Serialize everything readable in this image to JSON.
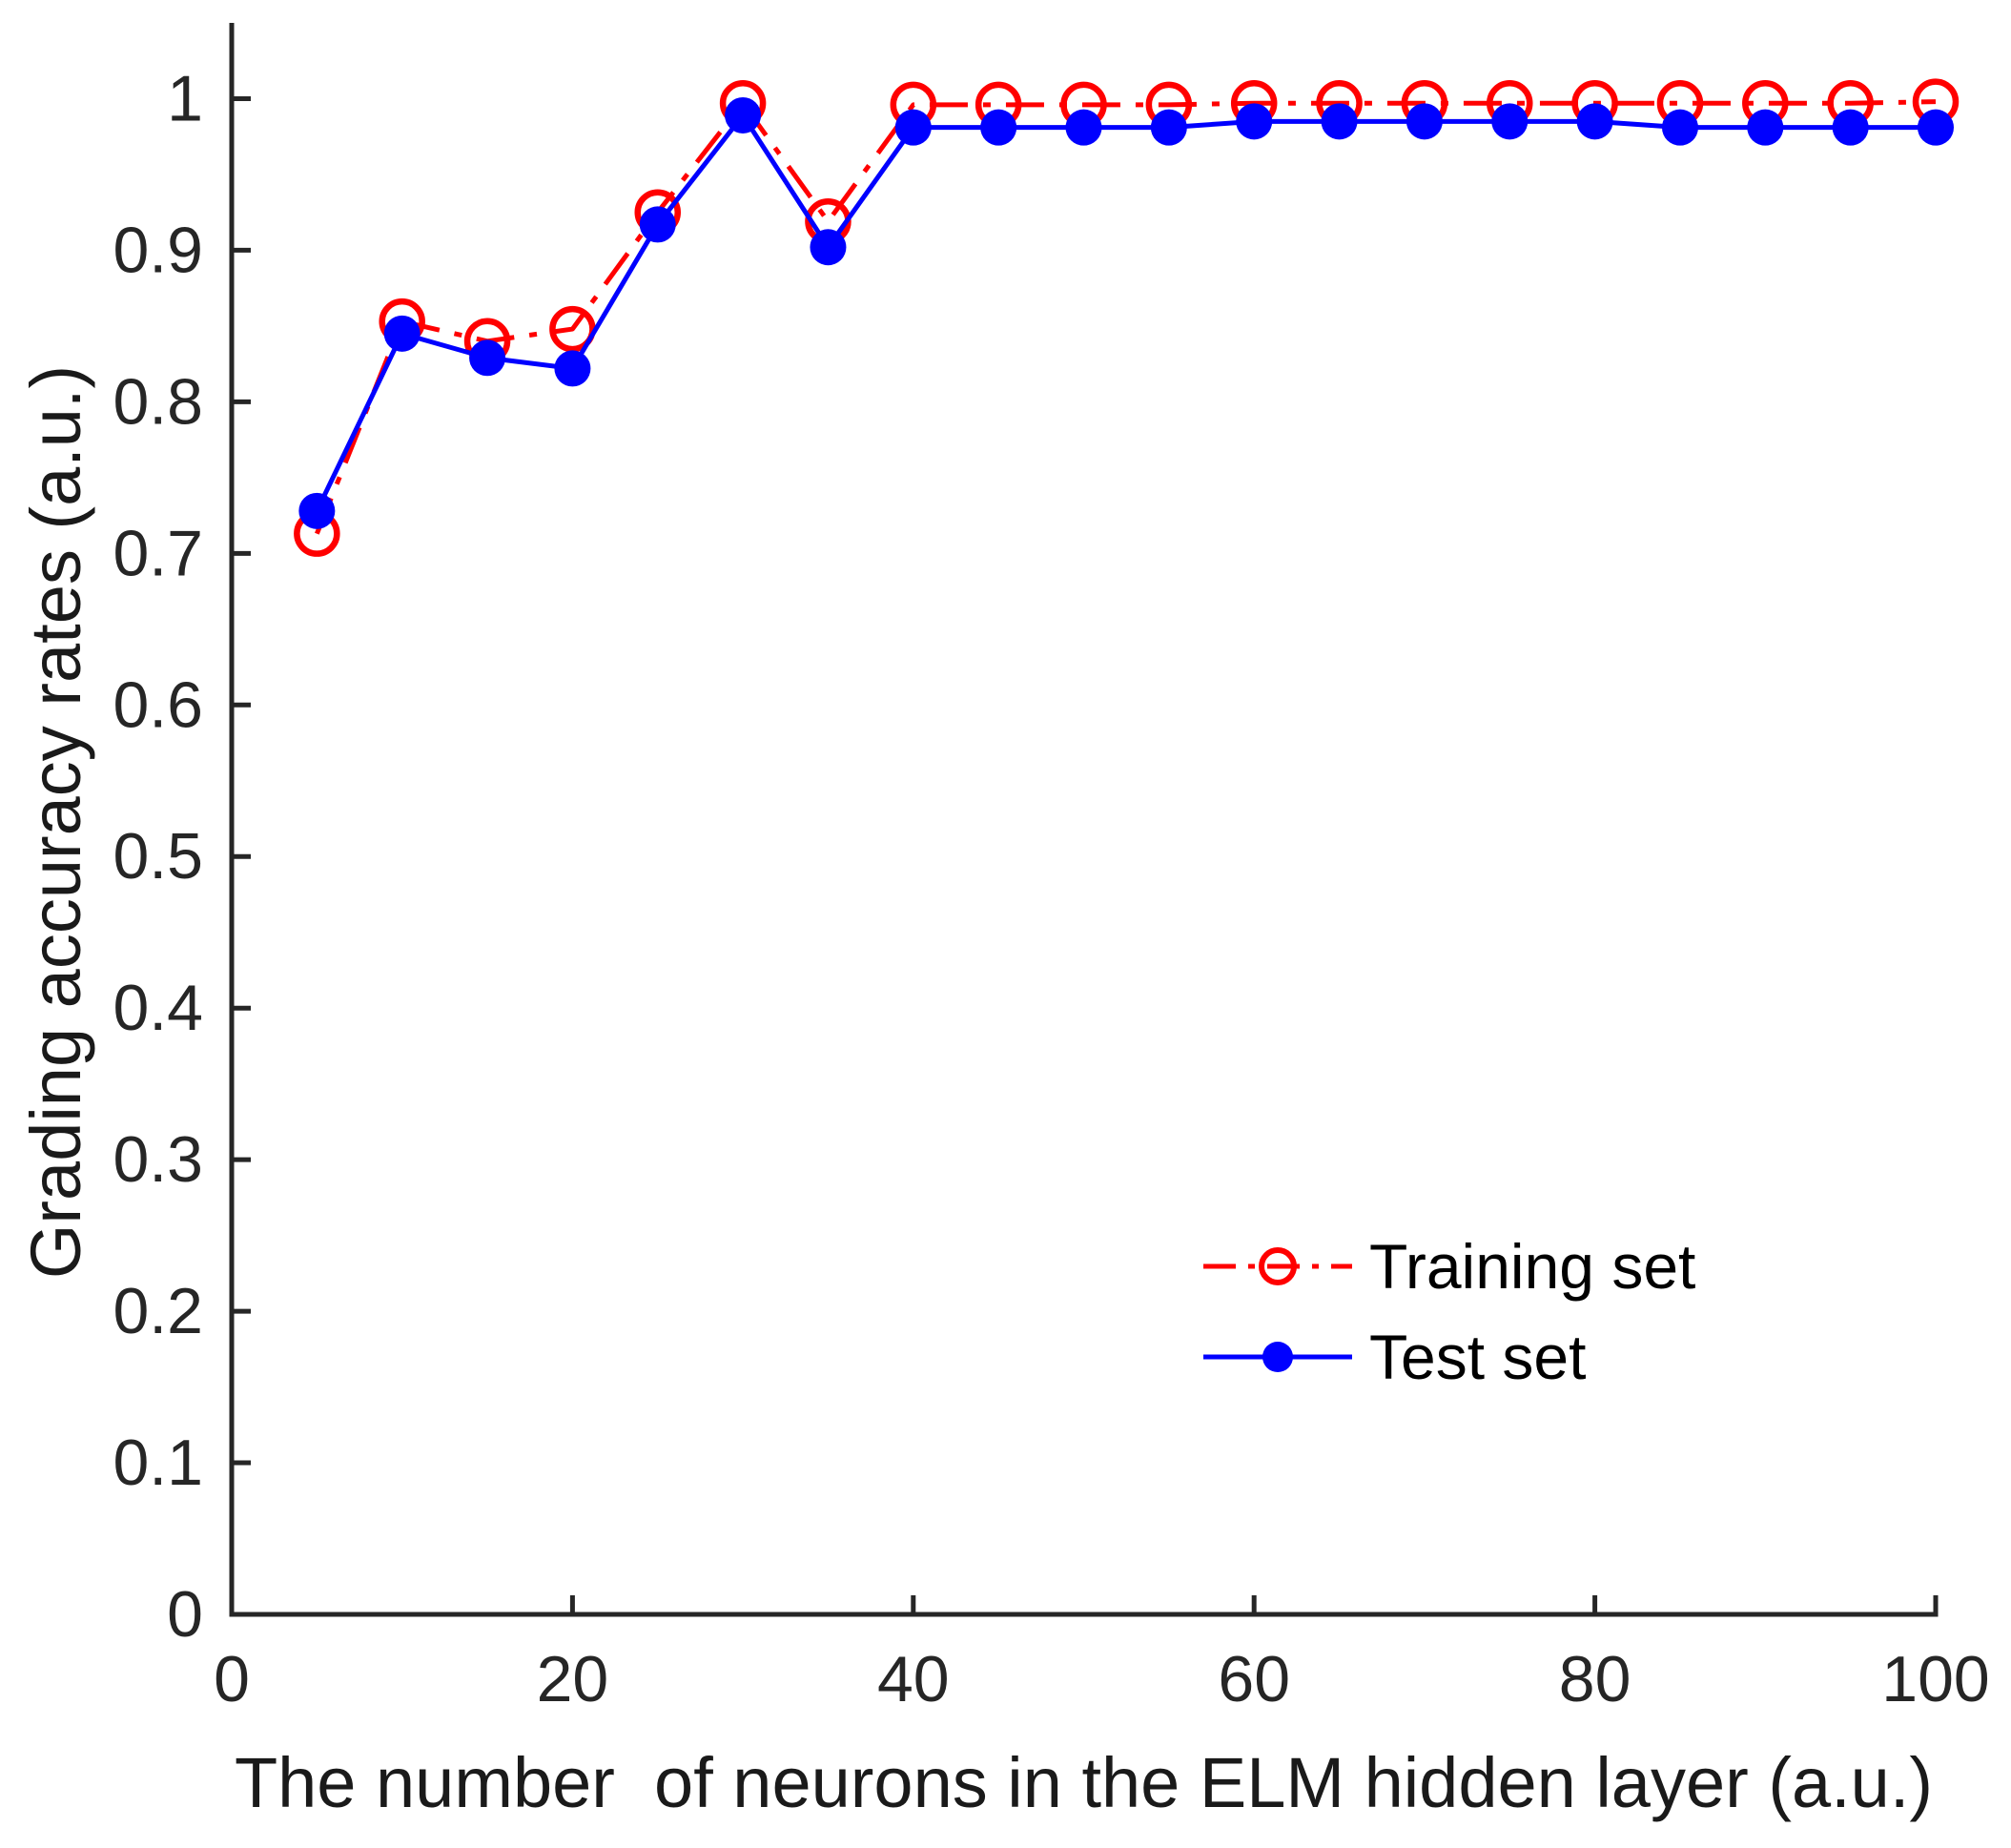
{
  "figure": {
    "background": "#ffffff",
    "axis_color": "#262626",
    "tick_label_color": "#262626",
    "label_color": "#1a1a1a"
  },
  "chart_data": {
    "type": "line",
    "title": "",
    "xlabel": "The number  of neurons in the ELM hidden layer (a.u.)",
    "ylabel": "Grading accuracy rates (a.u.)",
    "xlim": [
      0,
      100
    ],
    "ylim": [
      0,
      1.05
    ],
    "xticks": [
      0,
      20,
      40,
      60,
      80,
      100
    ],
    "xtick_labels": [
      "0",
      "20",
      "40",
      "60",
      "80",
      "100"
    ],
    "yticks": [
      0,
      0.1,
      0.2,
      0.3,
      0.4,
      0.5,
      0.6,
      0.7,
      0.8,
      0.9,
      1
    ],
    "ytick_labels": [
      "0",
      "0.1",
      "0.2",
      "0.3",
      "0.4",
      "0.5",
      "0.6",
      "0.7",
      "0.8",
      "0.9",
      "1"
    ],
    "grid": false,
    "legend_position": "inside-lower-right",
    "legend_frame": false,
    "x": [
      5,
      10,
      15,
      20,
      25,
      30,
      35,
      40,
      45,
      50,
      55,
      60,
      65,
      70,
      75,
      80,
      85,
      90,
      95,
      100
    ],
    "series": [
      {
        "name": "Training set",
        "color": "#ff0000",
        "line_style": "dash-dot",
        "marker": "open-circle",
        "values": [
          0.713,
          0.853,
          0.84,
          0.848,
          0.925,
          0.997,
          0.919,
          0.996,
          0.996,
          0.996,
          0.996,
          0.997,
          0.997,
          0.997,
          0.997,
          0.997,
          0.997,
          0.997,
          0.997,
          0.998
        ]
      },
      {
        "name": "Test set",
        "color": "#0000ff",
        "line_style": "solid",
        "marker": "filled-circle",
        "values": [
          0.728,
          0.845,
          0.829,
          0.822,
          0.917,
          0.989,
          0.902,
          0.981,
          0.981,
          0.981,
          0.981,
          0.985,
          0.985,
          0.985,
          0.985,
          0.985,
          0.981,
          0.981,
          0.981,
          0.981
        ]
      }
    ]
  }
}
